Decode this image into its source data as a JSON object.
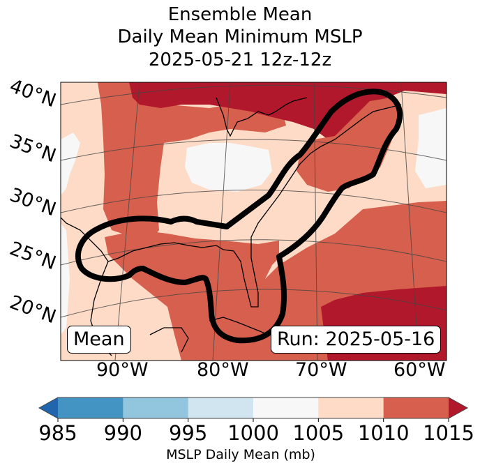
{
  "title": {
    "line1": "Ensemble Mean",
    "line2": "Daily Mean Minimum MSLP",
    "line3": "2025-05-21 12z-12z"
  },
  "map": {
    "lat_labels": [
      "40°N",
      "35°N",
      "30°N",
      "25°N",
      "20°N"
    ],
    "lon_labels": [
      "90°W",
      "80°W",
      "70°W",
      "60°W"
    ],
    "annotation_left": "Mean",
    "annotation_right": "Run: 2025-05-16",
    "contour_description": "Thick black contour outlining ensemble region from Texas Gulf coast through Florida to New England/Nova Scotia",
    "regions": [
      {
        "label": ">1015 mb",
        "area": "Great Lakes / Southern Quebec / Northern New England",
        "color": "#b2182b"
      },
      {
        "label": ">1015 mb",
        "area": "Atlantic southeast of Bermuda",
        "color": "#b2182b"
      },
      {
        "label": "1010-1015 mb",
        "area": "Gulf of Mexico, Central Plains band, New England coast, western Atlantic",
        "color": "#d6604d"
      },
      {
        "label": "1005-1010 mb",
        "area": "Southeastern US, Mexico, western Atlantic",
        "color": "#fddbc7"
      },
      {
        "label": "1000-1005 mb",
        "area": "Ohio Valley, far western edge, eastern Atlantic",
        "color": "#f7f7f7"
      }
    ]
  },
  "colorbar": {
    "label": "MSLP Daily Mean (mb)",
    "ticks": [
      "985",
      "990",
      "995",
      "1000",
      "1005",
      "1010",
      "1015"
    ],
    "bins": [
      {
        "range": "<985",
        "color": "#2166ac"
      },
      {
        "range": "985-990",
        "color": "#4393c3"
      },
      {
        "range": "990-995",
        "color": "#92c5de"
      },
      {
        "range": "995-1000",
        "color": "#d1e5f0"
      },
      {
        "range": "1000-1005",
        "color": "#f7f7f7"
      },
      {
        "range": "1005-1010",
        "color": "#fddbc7"
      },
      {
        "range": "1010-1015",
        "color": "#d6604d"
      },
      {
        "range": ">1015",
        "color": "#b2182b"
      }
    ]
  }
}
